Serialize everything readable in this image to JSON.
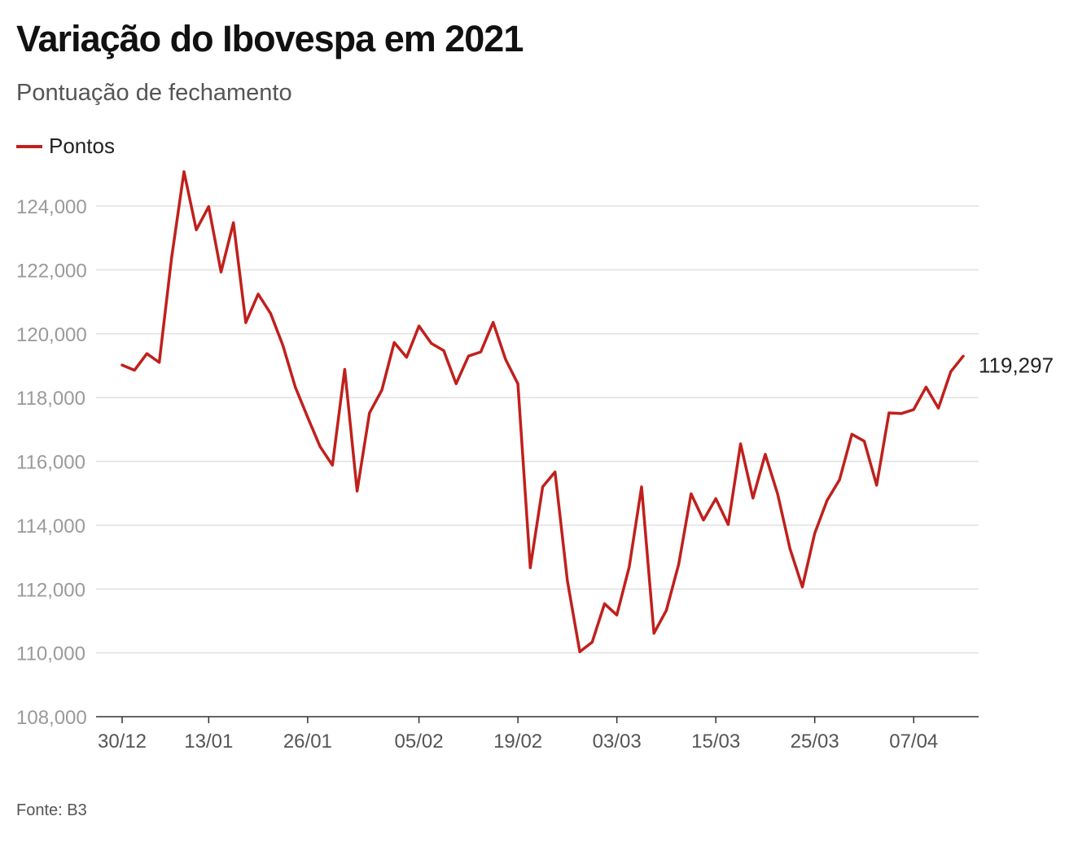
{
  "header": {
    "title": "Variação do Ibovespa em 2021",
    "subtitle": "Pontuação de fechamento"
  },
  "legend": {
    "label": "Pontos"
  },
  "source": "Fonte: B3",
  "colors": {
    "line": "#c0201c",
    "grid": "#e0e0e0",
    "axis": "#333333"
  },
  "chart_data": {
    "type": "line",
    "title": "Variação do Ibovespa em 2021",
    "subtitle": "Pontuação de fechamento",
    "ylim": [
      108000,
      124000
    ],
    "yticks": [
      108000,
      110000,
      112000,
      114000,
      116000,
      118000,
      120000,
      122000,
      124000
    ],
    "ytick_labels": [
      "108,000",
      "110,000",
      "112,000",
      "114,000",
      "116,000",
      "118,000",
      "120,000",
      "122,000",
      "124,000"
    ],
    "xtick_labels": [
      "30/12",
      "13/01",
      "26/01",
      "05/02",
      "19/02",
      "03/03",
      "15/03",
      "25/03",
      "07/04"
    ],
    "xtick_indices": [
      0,
      7,
      15,
      24,
      32,
      40,
      48,
      56,
      64
    ],
    "grid": true,
    "legend_position": "top-left",
    "end_label": "119,297",
    "series": [
      {
        "name": "Pontos",
        "values": [
          119017,
          118855,
          119376,
          119101,
          122386,
          125077,
          123255,
          123981,
          121933,
          123480,
          120348,
          121241,
          120636,
          119629,
          118328,
          117381,
          116464,
          115883,
          118883,
          115068,
          117517,
          118234,
          119725,
          119261,
          120240,
          119697,
          119471,
          118433,
          119300,
          119429,
          120356,
          119199,
          118430,
          112668,
          115202,
          115668,
          112256,
          110035,
          110335,
          111540,
          111184,
          112690,
          115202,
          110612,
          111331,
          112776,
          114984,
          114160,
          114835,
          114019,
          116549,
          114848,
          116222,
          114980,
          113262,
          112064,
          113750,
          114781,
          115420,
          116849,
          116634,
          115253,
          117518,
          117499,
          117623,
          118326,
          117670,
          118812,
          119297
        ]
      }
    ]
  }
}
